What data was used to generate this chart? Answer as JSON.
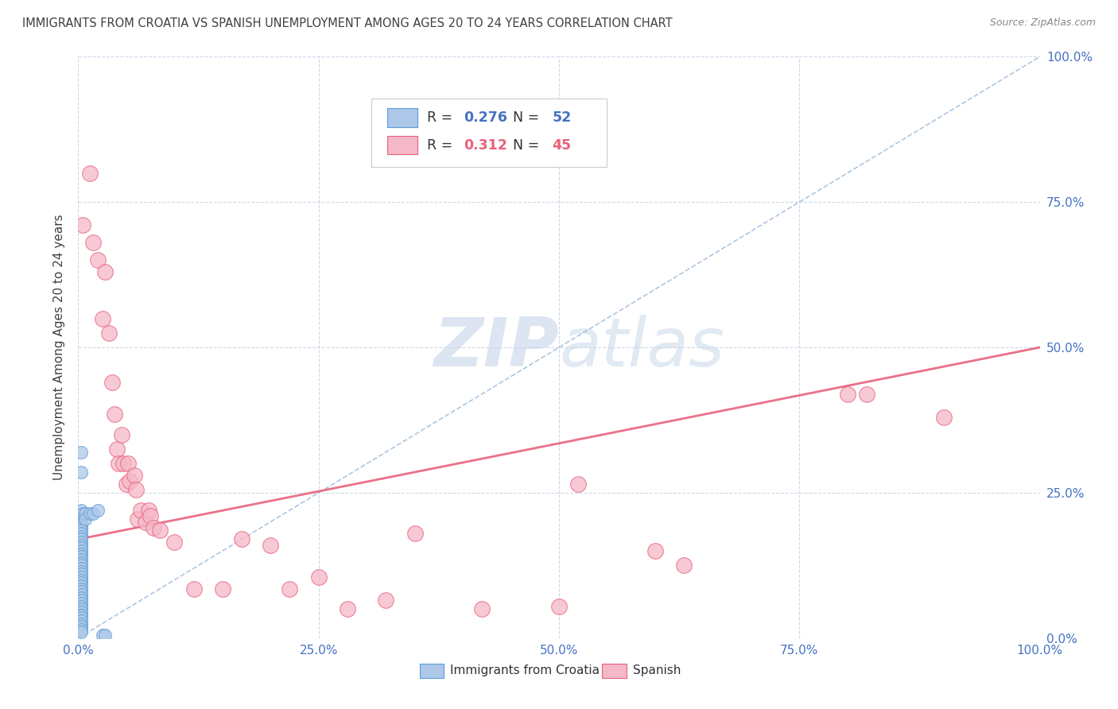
{
  "title": "IMMIGRANTS FROM CROATIA VS SPANISH UNEMPLOYMENT AMONG AGES 20 TO 24 YEARS CORRELATION CHART",
  "source": "Source: ZipAtlas.com",
  "ylabel": "Unemployment Among Ages 20 to 24 years",
  "legend_label1": "Immigrants from Croatia",
  "legend_label2": "Spanish",
  "R1": "0.276",
  "N1": "52",
  "R2": "0.312",
  "N2": "45",
  "watermark_part1": "ZIP",
  "watermark_part2": "atlas",
  "blue_color": "#adc8e8",
  "blue_edge": "#5b9bd5",
  "pink_color": "#f5b8c8",
  "pink_edge": "#e8607a",
  "axis_tick_color": "#4472c4",
  "grid_color": "#c8d4e8",
  "title_color": "#404040",
  "source_color": "#888888",
  "blue_line_color": "#90b4d8",
  "pink_line_color": "#e8607a",
  "blue_scatter": [
    [
      0.3,
      32.0
    ],
    [
      0.3,
      28.5
    ],
    [
      0.3,
      22.0
    ],
    [
      0.3,
      20.5
    ],
    [
      0.3,
      19.5
    ],
    [
      0.3,
      19.0
    ],
    [
      0.3,
      18.5
    ],
    [
      0.3,
      18.0
    ],
    [
      0.3,
      17.5
    ],
    [
      0.3,
      17.0
    ],
    [
      0.3,
      16.5
    ],
    [
      0.3,
      16.0
    ],
    [
      0.3,
      15.5
    ],
    [
      0.3,
      15.0
    ],
    [
      0.3,
      14.5
    ],
    [
      0.3,
      14.0
    ],
    [
      0.3,
      13.5
    ],
    [
      0.3,
      13.0
    ],
    [
      0.3,
      12.5
    ],
    [
      0.3,
      12.0
    ],
    [
      0.3,
      11.5
    ],
    [
      0.3,
      11.0
    ],
    [
      0.3,
      10.5
    ],
    [
      0.3,
      10.0
    ],
    [
      0.3,
      9.5
    ],
    [
      0.3,
      9.0
    ],
    [
      0.3,
      8.5
    ],
    [
      0.3,
      8.0
    ],
    [
      0.3,
      7.5
    ],
    [
      0.3,
      7.0
    ],
    [
      0.3,
      6.5
    ],
    [
      0.3,
      6.0
    ],
    [
      0.3,
      5.5
    ],
    [
      0.3,
      5.0
    ],
    [
      0.3,
      4.5
    ],
    [
      0.3,
      4.0
    ],
    [
      0.3,
      3.5
    ],
    [
      0.3,
      3.0
    ],
    [
      0.3,
      2.5
    ],
    [
      0.3,
      2.0
    ],
    [
      0.3,
      1.5
    ],
    [
      0.3,
      1.0
    ],
    [
      0.5,
      21.5
    ],
    [
      0.7,
      21.5
    ],
    [
      0.7,
      20.5
    ],
    [
      1.2,
      21.5
    ],
    [
      1.5,
      21.5
    ],
    [
      2.0,
      22.0
    ],
    [
      2.5,
      0.5
    ],
    [
      2.8,
      0.5
    ]
  ],
  "pink_scatter": [
    [
      0.5,
      71.0
    ],
    [
      1.2,
      80.0
    ],
    [
      1.5,
      68.0
    ],
    [
      2.0,
      65.0
    ],
    [
      2.5,
      55.0
    ],
    [
      2.8,
      63.0
    ],
    [
      3.2,
      52.5
    ],
    [
      3.5,
      44.0
    ],
    [
      3.8,
      38.5
    ],
    [
      4.0,
      32.5
    ],
    [
      4.2,
      30.0
    ],
    [
      4.5,
      35.0
    ],
    [
      4.7,
      30.0
    ],
    [
      5.0,
      26.5
    ],
    [
      5.2,
      30.0
    ],
    [
      5.3,
      27.0
    ],
    [
      5.8,
      28.0
    ],
    [
      6.0,
      25.5
    ],
    [
      6.2,
      20.5
    ],
    [
      6.5,
      22.0
    ],
    [
      7.0,
      20.0
    ],
    [
      7.3,
      22.0
    ],
    [
      7.5,
      21.0
    ],
    [
      7.8,
      19.0
    ],
    [
      8.5,
      18.5
    ],
    [
      10.0,
      16.5
    ],
    [
      12.0,
      8.5
    ],
    [
      15.0,
      8.5
    ],
    [
      17.0,
      17.0
    ],
    [
      20.0,
      16.0
    ],
    [
      22.0,
      8.5
    ],
    [
      25.0,
      10.5
    ],
    [
      28.0,
      5.0
    ],
    [
      32.0,
      6.5
    ],
    [
      35.0,
      18.0
    ],
    [
      42.0,
      5.0
    ],
    [
      50.0,
      5.5
    ],
    [
      52.0,
      26.5
    ],
    [
      60.0,
      15.0
    ],
    [
      63.0,
      12.5
    ],
    [
      80.0,
      42.0
    ],
    [
      82.0,
      42.0
    ],
    [
      90.0,
      38.0
    ]
  ],
  "blue_line": [
    [
      0,
      100
    ],
    [
      0,
      100
    ]
  ],
  "pink_line_y": [
    17.0,
    50.0
  ],
  "xlim": [
    0,
    100
  ],
  "ylim": [
    0,
    100
  ],
  "xticks": [
    0,
    25,
    50,
    75,
    100
  ],
  "yticks": [
    0,
    25,
    50,
    75,
    100
  ],
  "tick_labels": [
    "0.0%",
    "25.0%",
    "50.0%",
    "75.0%",
    "100.0%"
  ]
}
